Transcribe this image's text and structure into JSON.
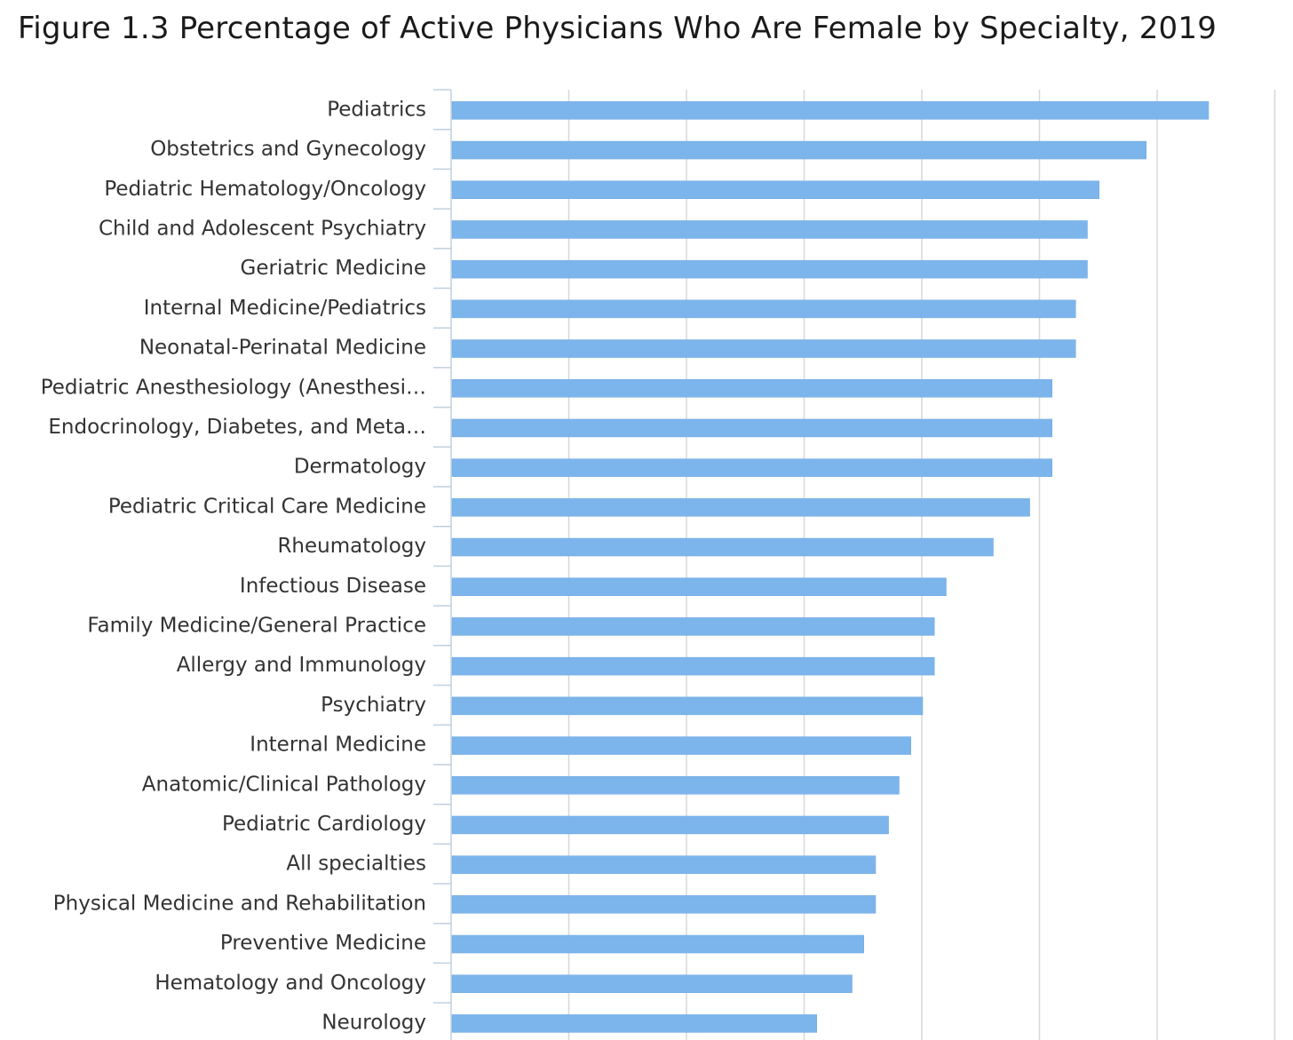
{
  "chart_data": {
    "type": "bar",
    "orientation": "horizontal",
    "title": "Figure 1.3 Percentage of Active Physicians Who Are Female by Specialty, 2019",
    "xlabel": "",
    "ylabel": "",
    "xlim": [
      0,
      70
    ],
    "x_tick_step": 10,
    "x_tick_labels_visible": false,
    "grid": true,
    "legend": "none",
    "bar_color": "#7cb5ec",
    "categories": [
      "Pediatrics",
      "Obstetrics and Gynecology",
      "Pediatric Hematology/Oncology",
      "Child and Adolescent Psychiatry",
      "Geriatric Medicine",
      "Internal Medicine/Pediatrics",
      "Neonatal-Perinatal Medicine",
      "Pediatric Anesthesiology (Anesthesi…",
      "Endocrinology, Diabetes, and Meta…",
      "Dermatology",
      "Pediatric Critical Care Medicine",
      "Rheumatology",
      "Infectious Disease",
      "Family Medicine/General Practice",
      "Allergy and Immunology",
      "Psychiatry",
      "Internal Medicine",
      "Anatomic/Clinical Pathology",
      "Pediatric Cardiology",
      "All specialties",
      "Physical Medicine and Rehabilitation",
      "Preventive Medicine",
      "Hematology and Oncology",
      "Neurology"
    ],
    "values": [
      64.3,
      59.0,
      55.0,
      54.0,
      54.0,
      53.0,
      53.0,
      51.0,
      51.0,
      51.0,
      49.1,
      46.0,
      42.0,
      41.0,
      41.0,
      40.0,
      39.0,
      38.0,
      37.1,
      36.0,
      36.0,
      35.0,
      34.0,
      31.0
    ]
  }
}
